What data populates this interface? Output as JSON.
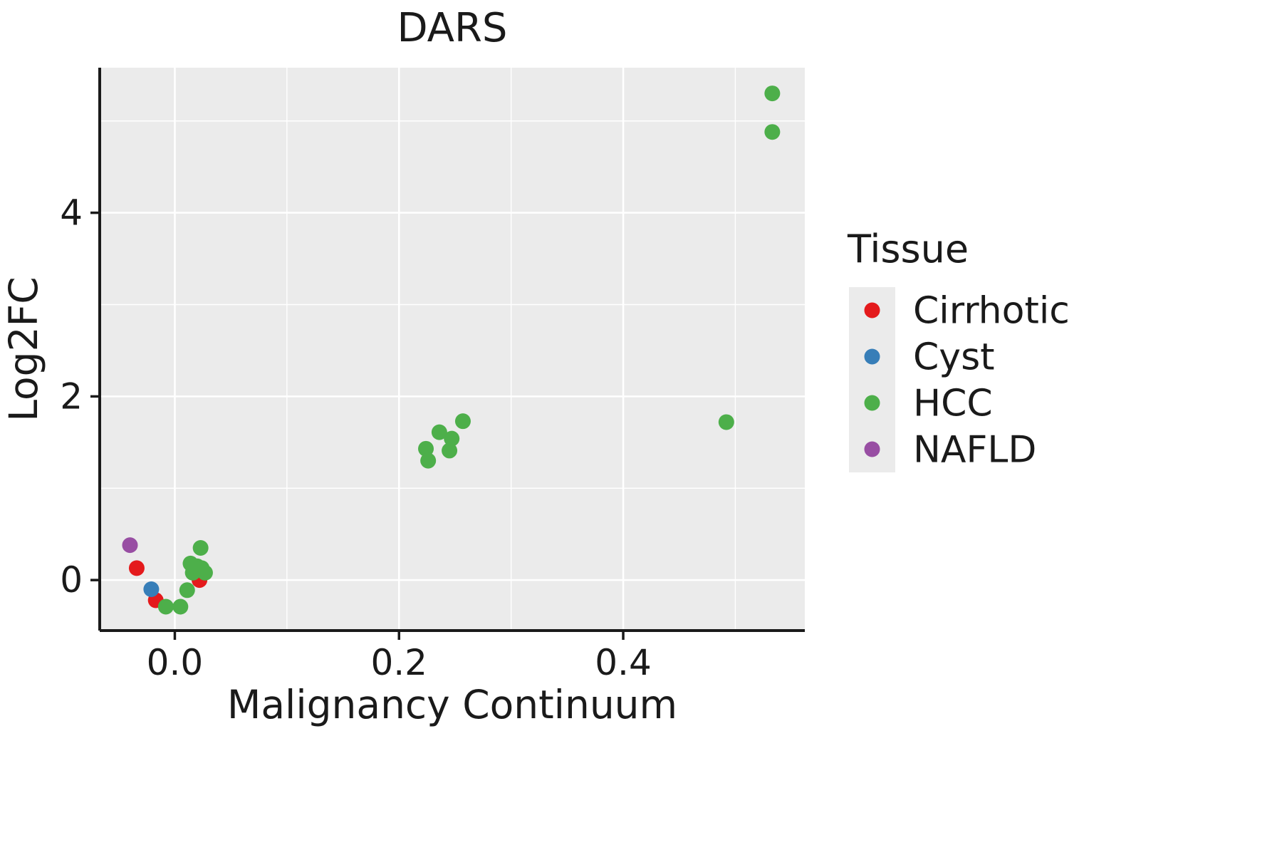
{
  "title": "DARS",
  "axes": {
    "x_label": "Malignancy Continuum",
    "y_label": "Log2FC"
  },
  "legend": {
    "title": "Tissue",
    "items": [
      {
        "label": "Cirrhotic",
        "color": "#E41A1C"
      },
      {
        "label": "Cyst",
        "color": "#377EB8"
      },
      {
        "label": "HCC",
        "color": "#4DAF4A"
      },
      {
        "label": "NAFLD",
        "color": "#984EA3"
      }
    ]
  },
  "chart_data": {
    "type": "scatter",
    "title": "DARS",
    "xlabel": "Malignancy Continuum",
    "ylabel": "Log2FC",
    "xlim": [
      -0.067,
      0.562
    ],
    "ylim": [
      -0.55,
      5.58
    ],
    "xticks": [
      {
        "value": 0.0,
        "label": "0.0"
      },
      {
        "value": 0.2,
        "label": "0.2"
      },
      {
        "value": 0.4,
        "label": "0.4"
      }
    ],
    "xminor": [
      0.1,
      0.3,
      0.5
    ],
    "yticks": [
      {
        "value": 0,
        "label": "0"
      },
      {
        "value": 2,
        "label": "2"
      },
      {
        "value": 4,
        "label": "4"
      }
    ],
    "yminor": [
      1,
      3,
      5
    ],
    "grid": true,
    "legend_position": "right",
    "panel_color": "#EBEBEB",
    "gridline_color": "#FFFFFF",
    "point_radius": 11,
    "series": [
      {
        "name": "Cirrhotic",
        "color": "#E41A1C",
        "points": [
          [
            -0.034,
            0.13
          ],
          [
            -0.017,
            -0.22
          ],
          [
            0.022,
            0.0
          ]
        ]
      },
      {
        "name": "Cyst",
        "color": "#377EB8",
        "points": [
          [
            -0.021,
            -0.1
          ]
        ]
      },
      {
        "name": "HCC",
        "color": "#4DAF4A",
        "points": [
          [
            -0.008,
            -0.29
          ],
          [
            0.005,
            -0.29
          ],
          [
            0.011,
            -0.11
          ],
          [
            0.014,
            0.18
          ],
          [
            0.016,
            0.08
          ],
          [
            0.02,
            0.15
          ],
          [
            0.023,
            0.35
          ],
          [
            0.024,
            0.13
          ],
          [
            0.027,
            0.08
          ],
          [
            0.224,
            1.43
          ],
          [
            0.226,
            1.3
          ],
          [
            0.236,
            1.61
          ],
          [
            0.245,
            1.41
          ],
          [
            0.247,
            1.54
          ],
          [
            0.257,
            1.73
          ],
          [
            0.492,
            1.72
          ],
          [
            0.533,
            5.3
          ],
          [
            0.533,
            4.88
          ]
        ]
      },
      {
        "name": "NAFLD",
        "color": "#984EA3",
        "points": [
          [
            -0.04,
            0.38
          ]
        ]
      }
    ]
  }
}
